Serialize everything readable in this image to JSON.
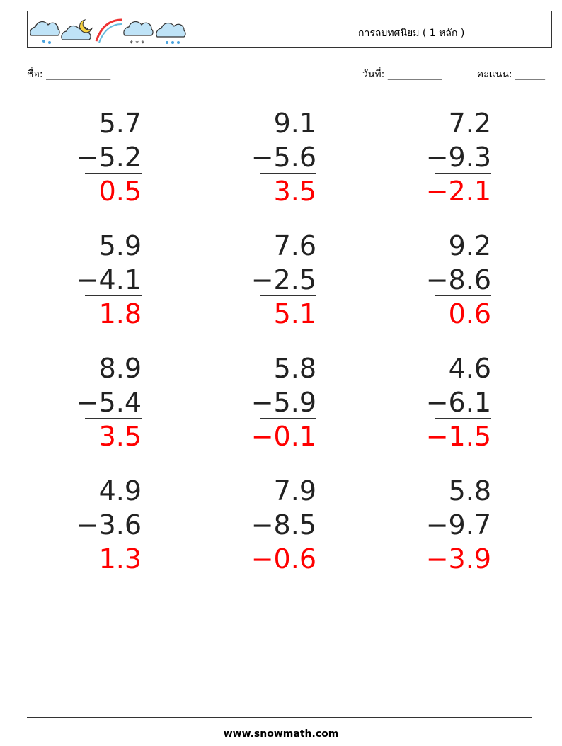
{
  "header": {
    "title": "การลบทศนิยม ( 1 หลัก )"
  },
  "fields": {
    "name": "ชื่อ: _____________",
    "date": "วันที่: ___________",
    "score": "คะแนน: ______"
  },
  "problems": [
    {
      "top": "5.7",
      "bottom": "−5.2",
      "answer": "0.5"
    },
    {
      "top": "9.1",
      "bottom": "−5.6",
      "answer": "3.5"
    },
    {
      "top": "7.2",
      "bottom": "−9.3",
      "answer": "−2.1"
    },
    {
      "top": "5.9",
      "bottom": "−4.1",
      "answer": "1.8"
    },
    {
      "top": "7.6",
      "bottom": "−2.5",
      "answer": "5.1"
    },
    {
      "top": "9.2",
      "bottom": "−8.6",
      "answer": "0.6"
    },
    {
      "top": "8.9",
      "bottom": "−5.4",
      "answer": "3.5"
    },
    {
      "top": "5.8",
      "bottom": "−5.9",
      "answer": "−0.1"
    },
    {
      "top": "4.6",
      "bottom": "−6.1",
      "answer": "−1.5"
    },
    {
      "top": "4.9",
      "bottom": "−3.6",
      "answer": "1.3"
    },
    {
      "top": "7.9",
      "bottom": "−8.5",
      "answer": "−0.6"
    },
    {
      "top": "5.8",
      "bottom": "−9.7",
      "answer": "−3.9"
    }
  ],
  "footer": {
    "site": "www.snowmath.com"
  }
}
